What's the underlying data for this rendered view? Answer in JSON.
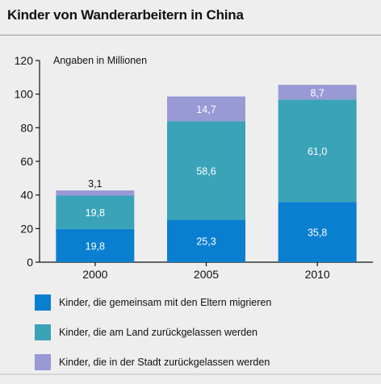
{
  "header": {
    "title": "Kinder von Wanderarbeitern in China"
  },
  "chart_data": {
    "type": "bar",
    "stacked": true,
    "categories": [
      "2000",
      "2005",
      "2010"
    ],
    "series": [
      {
        "name": "Kinder, die gemeinsam mit den Eltern migrieren",
        "values": [
          19.8,
          25.3,
          35.8
        ],
        "labels": [
          "19,8",
          "25,3",
          "35,8"
        ],
        "color": "#0a7fd0"
      },
      {
        "name": "Kinder, die am Land zurückgelassen werden",
        "values": [
          19.8,
          58.6,
          61.0
        ],
        "labels": [
          "19,8",
          "58,6",
          "61,0"
        ],
        "color": "#3aa3b8"
      },
      {
        "name": "Kinder, die in der Stadt zurückgelassen werden",
        "values": [
          3.1,
          14.7,
          8.7
        ],
        "labels": [
          "3,1",
          "14,7",
          "8,7"
        ],
        "color": "#9999d6"
      }
    ],
    "unit_note": "Angaben in Millionen",
    "ylim": [
      0,
      120
    ],
    "yticks": [
      "0",
      "20",
      "40",
      "60",
      "80",
      "100",
      "120"
    ],
    "grid": false,
    "legend_position": "bottom"
  }
}
